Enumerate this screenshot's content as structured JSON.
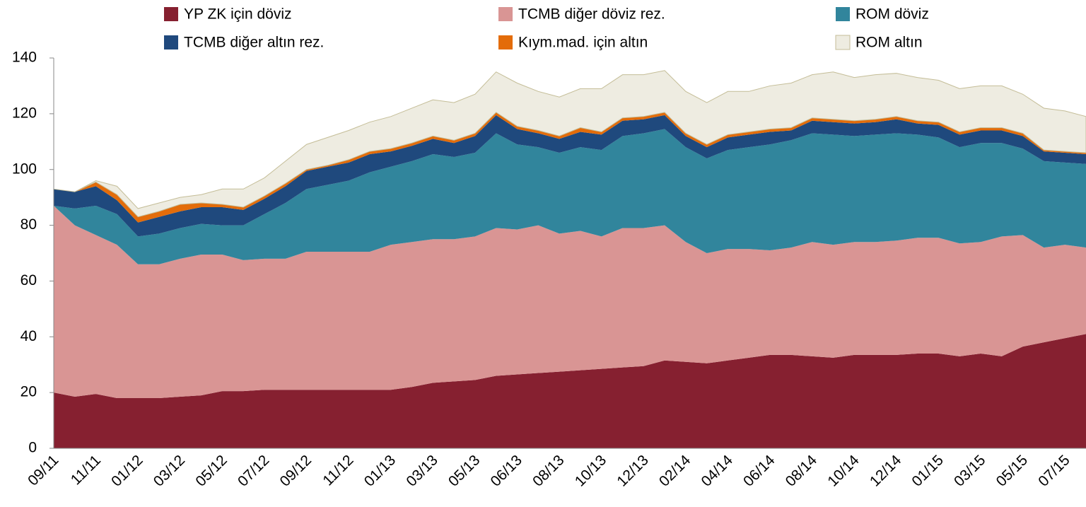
{
  "chart_data": {
    "type": "stacked_area",
    "categories": [
      "09/11",
      null,
      "11/11",
      null,
      "01/12",
      null,
      "03/12",
      null,
      "05/12",
      null,
      "07/12",
      null,
      "09/12",
      null,
      "11/12",
      null,
      "01/13",
      null,
      "03/13",
      null,
      "05/13",
      null,
      "06/13",
      null,
      "08/13",
      null,
      "10/13",
      null,
      "12/13",
      null,
      "02/14",
      null,
      "04/14",
      null,
      "06/14",
      null,
      "08/14",
      null,
      "10/14",
      null,
      "12/14",
      null,
      "01/15",
      null,
      "03/15",
      null,
      "05/15",
      null,
      "07/15",
      null
    ],
    "series": [
      {
        "name": "YP ZK için döviz",
        "color": "#862030",
        "values": [
          20,
          18.5,
          19.5,
          18,
          18,
          18,
          18.5,
          19,
          20.5,
          20.5,
          21,
          21,
          21,
          21,
          21,
          21,
          21,
          22,
          23.5,
          24,
          24.5,
          26,
          26.5,
          27,
          27.5,
          28,
          28.5,
          29,
          29.5,
          31.5,
          31,
          30.5,
          31.5,
          32.5,
          33.5,
          33.5,
          33,
          32.5,
          33.5,
          33.5,
          33.5,
          34,
          34,
          33,
          34,
          33,
          36.5,
          38,
          39.5,
          41
        ]
      },
      {
        "name": "TCMB diğer döviz rez.",
        "color": "#d99594",
        "values": [
          67,
          61.5,
          57,
          55,
          48,
          48,
          49.5,
          50.5,
          49,
          47,
          47,
          47,
          49.5,
          49.5,
          49.5,
          49.5,
          52,
          52,
          51.5,
          51,
          51.5,
          53,
          52,
          53,
          49.5,
          50,
          47.5,
          50,
          49.5,
          48.5,
          43,
          39.5,
          40,
          39,
          37.5,
          38.5,
          41,
          40.5,
          40.5,
          40.5,
          41,
          41.5,
          41.5,
          40.5,
          40,
          43,
          40,
          34,
          33.5,
          31
        ]
      },
      {
        "name": "ROM döviz",
        "color": "#31859c",
        "values": [
          0,
          6,
          10.5,
          11,
          10,
          11,
          11,
          11,
          10.5,
          12.5,
          16,
          20,
          22.5,
          24,
          25.5,
          28.5,
          28,
          29,
          30.5,
          29.5,
          30,
          34,
          30.5,
          28,
          29,
          30,
          31,
          33,
          34,
          34.5,
          34,
          34,
          35.5,
          36.5,
          38,
          38.5,
          39,
          39.5,
          38,
          38.5,
          38.5,
          37,
          36,
          34.5,
          35.5,
          33.5,
          31,
          31,
          29.5,
          30
        ]
      },
      {
        "name": "TCMB diğer altın rez.",
        "color": "#1f497d",
        "values": [
          6,
          6,
          7,
          5,
          5,
          6,
          6,
          6,
          6.5,
          5.5,
          5.5,
          6,
          6.5,
          6.5,
          6.5,
          6.5,
          5.5,
          5.5,
          5.5,
          5,
          6,
          6.5,
          5.5,
          5,
          5,
          5.5,
          5.5,
          5.5,
          5,
          5,
          4,
          4,
          4.5,
          4.5,
          4.5,
          3.5,
          4.5,
          4.5,
          4.5,
          4.5,
          5,
          4,
          4.5,
          4.5,
          4.5,
          4.5,
          4.5,
          3.5,
          3.5,
          3.5
        ]
      },
      {
        "name": "Kıym.mad. için altın",
        "color": "#e36c0a",
        "values": [
          0,
          0,
          1.5,
          2,
          2,
          2,
          2.5,
          1.5,
          1,
          1,
          1,
          1,
          0.5,
          0.5,
          1,
          1,
          1,
          1,
          1,
          1,
          1,
          1,
          1,
          1,
          1,
          1.5,
          1,
          1,
          1,
          1,
          1,
          1,
          1,
          1,
          1,
          1,
          1,
          1,
          1,
          1,
          1,
          1,
          1,
          1,
          1,
          1,
          1,
          0.5,
          0.5,
          0.5
        ]
      },
      {
        "name": "ROM altın",
        "color": "#eeece1",
        "values": [
          0,
          0,
          0.5,
          3,
          3,
          3,
          2.5,
          3,
          5.5,
          6.5,
          6.5,
          8,
          9,
          10,
          10.5,
          10.5,
          11.5,
          12.5,
          13,
          13.5,
          14,
          14.5,
          15.5,
          14,
          14,
          14,
          15.5,
          15.5,
          15,
          15,
          15,
          15,
          15.5,
          14.5,
          15.5,
          16,
          15.5,
          17,
          15.5,
          16,
          15.5,
          15.5,
          15,
          15.5,
          15,
          15,
          14,
          15,
          14.5,
          13
        ]
      }
    ],
    "ylim": [
      0,
      140
    ],
    "yticks": [
      0,
      20,
      40,
      60,
      80,
      100,
      120,
      140
    ]
  }
}
